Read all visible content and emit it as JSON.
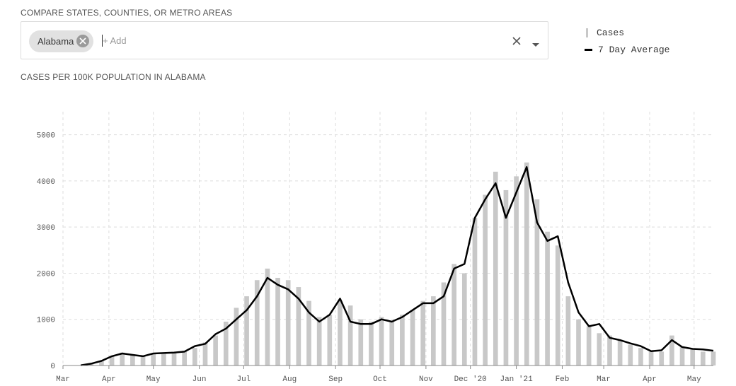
{
  "compare": {
    "label": "COMPARE STATES, COUNTIES, OR METRO AREAS",
    "selected_chip": "Alabama",
    "input_placeholder": "+ Add"
  },
  "legend": {
    "items": [
      {
        "label": "Cases",
        "kind": "bar",
        "color": "#c8c8c8"
      },
      {
        "label": "7 Day Average",
        "kind": "line",
        "color": "#000000"
      }
    ]
  },
  "chart_title": "CASES PER 100K POPULATION IN ALABAMA",
  "chart_data": {
    "type": "bar",
    "title": "CASES PER 100K POPULATION IN ALABAMA",
    "xlabel": "",
    "ylabel": "",
    "ylim": [
      0,
      5500
    ],
    "yticks": [
      0,
      1000,
      2000,
      3000,
      4000,
      5000
    ],
    "xtick_labels": [
      "Mar",
      "Apr",
      "May",
      "Jun",
      "Jul",
      "Aug",
      "Sep",
      "Oct",
      "Nov",
      "Dec '20",
      "Jan '21",
      "Feb",
      "Mar",
      "Apr",
      "May"
    ],
    "xtick_dates": [
      "2020-03-01",
      "2020-04-01",
      "2020-05-01",
      "2020-06-01",
      "2020-07-01",
      "2020-08-01",
      "2020-09-01",
      "2020-10-01",
      "2020-11-01",
      "2020-12-01",
      "2021-01-01",
      "2021-02-01",
      "2021-03-01",
      "2021-04-01",
      "2021-05-01"
    ],
    "x_range": [
      "2020-03-01",
      "2021-05-14"
    ],
    "grid": true,
    "legend_position": "top-right",
    "series": [
      {
        "name": "Cases",
        "kind": "bar",
        "color": "#c8c8c8",
        "x": [
          "2020-03-13",
          "2020-03-20",
          "2020-03-27",
          "2020-04-03",
          "2020-04-10",
          "2020-04-17",
          "2020-04-24",
          "2020-05-01",
          "2020-05-08",
          "2020-05-15",
          "2020-05-22",
          "2020-05-29",
          "2020-06-05",
          "2020-06-12",
          "2020-06-19",
          "2020-06-26",
          "2020-07-03",
          "2020-07-10",
          "2020-07-17",
          "2020-07-24",
          "2020-07-31",
          "2020-08-07",
          "2020-08-14",
          "2020-08-21",
          "2020-08-28",
          "2020-09-04",
          "2020-09-11",
          "2020-09-18",
          "2020-09-25",
          "2020-10-02",
          "2020-10-09",
          "2020-10-16",
          "2020-10-23",
          "2020-10-30",
          "2020-11-06",
          "2020-11-13",
          "2020-11-20",
          "2020-11-27",
          "2020-12-04",
          "2020-12-11",
          "2020-12-18",
          "2020-12-25",
          "2021-01-01",
          "2021-01-08",
          "2021-01-15",
          "2021-01-22",
          "2021-01-29",
          "2021-02-05",
          "2021-02-12",
          "2021-02-19",
          "2021-02-26",
          "2021-03-05",
          "2021-03-12",
          "2021-03-19",
          "2021-03-26",
          "2021-04-02",
          "2021-04-09",
          "2021-04-16",
          "2021-04-23",
          "2021-04-30",
          "2021-05-07",
          "2021-05-14"
        ],
        "values": [
          5,
          40,
          100,
          200,
          280,
          240,
          210,
          260,
          250,
          280,
          320,
          380,
          500,
          650,
          950,
          1250,
          1500,
          1850,
          2100,
          1900,
          1850,
          1700,
          1400,
          1050,
          1100,
          1400,
          1300,
          1000,
          950,
          1050,
          950,
          1100,
          1200,
          1400,
          1500,
          1800,
          2200,
          2000,
          3200,
          3700,
          4200,
          3800,
          4100,
          4400,
          3600,
          2900,
          2600,
          1500,
          1000,
          850,
          700,
          650,
          550,
          450,
          380,
          300,
          300,
          650,
          400,
          350,
          300,
          300
        ]
      },
      {
        "name": "7 Day Average",
        "kind": "line",
        "color": "#000000",
        "x": [
          "2020-03-13",
          "2020-03-20",
          "2020-03-27",
          "2020-04-03",
          "2020-04-10",
          "2020-04-17",
          "2020-04-24",
          "2020-05-01",
          "2020-05-08",
          "2020-05-15",
          "2020-05-22",
          "2020-05-29",
          "2020-06-05",
          "2020-06-12",
          "2020-06-19",
          "2020-06-26",
          "2020-07-03",
          "2020-07-10",
          "2020-07-17",
          "2020-07-24",
          "2020-07-31",
          "2020-08-07",
          "2020-08-14",
          "2020-08-21",
          "2020-08-28",
          "2020-09-04",
          "2020-09-11",
          "2020-09-18",
          "2020-09-25",
          "2020-10-02",
          "2020-10-09",
          "2020-10-16",
          "2020-10-23",
          "2020-10-30",
          "2020-11-06",
          "2020-11-13",
          "2020-11-20",
          "2020-11-27",
          "2020-12-04",
          "2020-12-11",
          "2020-12-18",
          "2020-12-25",
          "2021-01-01",
          "2021-01-08",
          "2021-01-15",
          "2021-01-22",
          "2021-01-29",
          "2021-02-05",
          "2021-02-12",
          "2021-02-19",
          "2021-02-26",
          "2021-03-05",
          "2021-03-12",
          "2021-03-19",
          "2021-03-26",
          "2021-04-02",
          "2021-04-09",
          "2021-04-16",
          "2021-04-23",
          "2021-04-30",
          "2021-05-07",
          "2021-05-14"
        ],
        "values": [
          5,
          40,
          100,
          200,
          260,
          230,
          200,
          260,
          270,
          280,
          300,
          420,
          470,
          680,
          800,
          1000,
          1200,
          1500,
          1900,
          1750,
          1650,
          1450,
          1150,
          950,
          1100,
          1450,
          950,
          900,
          900,
          1000,
          950,
          1050,
          1200,
          1350,
          1350,
          1500,
          2100,
          2200,
          3200,
          3600,
          3950,
          3200,
          3750,
          4300,
          3100,
          2700,
          2800,
          1800,
          1150,
          850,
          900,
          600,
          550,
          480,
          420,
          310,
          330,
          550,
          400,
          360,
          350,
          320
        ]
      }
    ]
  }
}
